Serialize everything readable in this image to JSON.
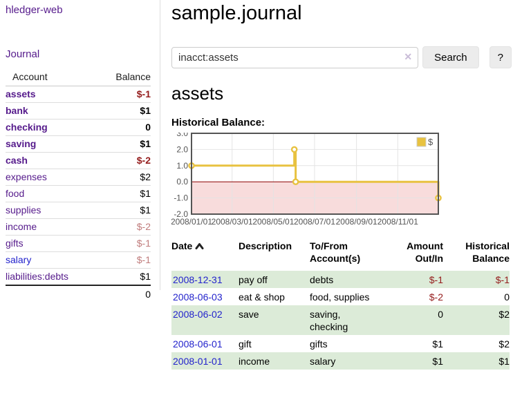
{
  "app": {
    "brand": "hledger-web",
    "nav_journal": "Journal"
  },
  "colors": {
    "link_purple": "#551a8b",
    "link_blue": "#2222cc",
    "negative": "#941b1b",
    "negative_muted": "#c07c7c",
    "row_stripe_green": "#dcebd8",
    "series_gold": "#e8c240"
  },
  "sidebar": {
    "account_header": "Account",
    "balance_header": "Balance",
    "rows": [
      {
        "account": "assets",
        "depth": 1,
        "bold": true,
        "account_color": "purple",
        "balance": "$-1",
        "balance_style": "negative-bold"
      },
      {
        "account": "bank",
        "depth": 2,
        "bold": true,
        "account_color": "purple",
        "balance": "$1",
        "balance_style": "bold"
      },
      {
        "account": "checking",
        "depth": 3,
        "bold": true,
        "account_color": "purple",
        "balance": "0",
        "balance_style": "bold"
      },
      {
        "account": "saving",
        "depth": 3,
        "bold": true,
        "account_color": "purple",
        "balance": "$1",
        "balance_style": "bold"
      },
      {
        "account": "cash",
        "depth": 2,
        "bold": true,
        "account_color": "purple",
        "balance": "$-2",
        "balance_style": "negative-bold"
      },
      {
        "account": "expenses",
        "depth": 1,
        "bold": false,
        "account_color": "purple",
        "balance": "$2",
        "balance_style": "normal"
      },
      {
        "account": "food",
        "depth": 2,
        "bold": false,
        "account_color": "purple",
        "balance": "$1",
        "balance_style": "normal"
      },
      {
        "account": "supplies",
        "depth": 2,
        "bold": false,
        "account_color": "purple",
        "balance": "$1",
        "balance_style": "normal"
      },
      {
        "account": "income",
        "depth": 1,
        "bold": false,
        "account_color": "purple",
        "balance": "$-2",
        "balance_style": "negative-muted"
      },
      {
        "account": "gifts",
        "depth": 2,
        "bold": false,
        "account_color": "purple",
        "balance": "$-1",
        "balance_style": "negative-muted"
      },
      {
        "account": "salary",
        "depth": 2,
        "bold": false,
        "account_color": "blue",
        "balance": "$-1",
        "balance_style": "negative-muted"
      },
      {
        "account": "liabilities:debts",
        "depth": 1,
        "bold": false,
        "account_color": "purple",
        "balance": "$1",
        "balance_style": "normal"
      }
    ],
    "total": "0"
  },
  "header": {
    "title": "sample.journal"
  },
  "search": {
    "value": "inacct:assets",
    "clear_icon": "✕",
    "button_label": "Search",
    "help_label": "?"
  },
  "account_page": {
    "heading": "assets",
    "chart_title": "Historical Balance:"
  },
  "chart_data": {
    "type": "line",
    "title": "Historical Balance",
    "step": true,
    "series": [
      {
        "name": "$",
        "color": "#e8c240",
        "points": [
          [
            "2008-01-01",
            1
          ],
          [
            "2008-06-01",
            2
          ],
          [
            "2008-06-03",
            0
          ],
          [
            "2008-12-31",
            -1
          ]
        ]
      }
    ],
    "xlim": [
      "2008-01-01",
      "2008-12-31"
    ],
    "ylim": [
      -2,
      3
    ],
    "x_ticks": [
      "2008/01/01",
      "2008/03/01",
      "2008/05/01",
      "2008/07/01",
      "2008/09/01",
      "2008/11/01"
    ],
    "y_ticks": [
      3,
      2,
      1,
      0,
      -1,
      -2
    ],
    "grid": true,
    "legend_position": "top-right",
    "negative_region_color": "#f8dcdc",
    "zero_line_color": "#8b0000",
    "axis_text_color": "#545454",
    "border_color": "#545454"
  },
  "register": {
    "columns": {
      "date": "Date",
      "description": "Description",
      "accounts": "To/From Account(s)",
      "amount": "Amount Out/In",
      "balance": "Historical Balance"
    },
    "rows": [
      {
        "date": "2008-12-31",
        "description": "pay off",
        "accounts": "debts",
        "amount": "$-1",
        "balance": "$-1"
      },
      {
        "date": "2008-06-03",
        "description": "eat & shop",
        "accounts": "food, supplies",
        "amount": "$-2",
        "balance": "0"
      },
      {
        "date": "2008-06-02",
        "description": "save",
        "accounts": "saving, checking",
        "amount": "0",
        "balance": "$2"
      },
      {
        "date": "2008-06-01",
        "description": "gift",
        "accounts": "gifts",
        "amount": "$1",
        "balance": "$2"
      },
      {
        "date": "2008-01-01",
        "description": "income",
        "accounts": "salary",
        "amount": "$1",
        "balance": "$1"
      }
    ]
  }
}
